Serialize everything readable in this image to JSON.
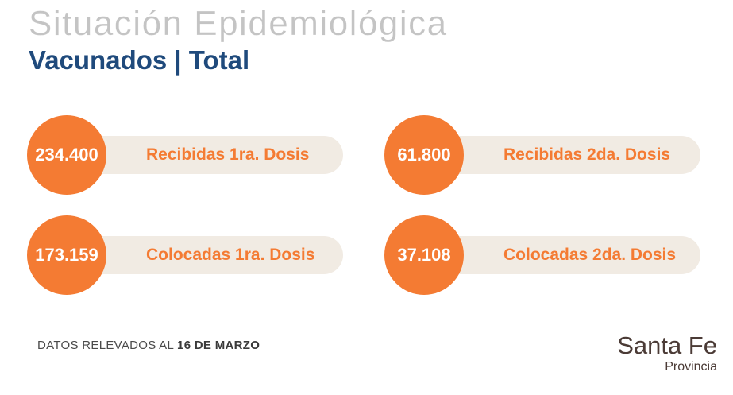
{
  "header": {
    "title": "Situación Epidemiológica",
    "subtitle": "Vacunados | Total"
  },
  "stats": [
    {
      "value": "234.400",
      "label": "Recibidas 1ra. Dosis"
    },
    {
      "value": "61.800",
      "label": "Recibidas 2da. Dosis"
    },
    {
      "value": "173.159",
      "label": "Colocadas 1ra. Dosis"
    },
    {
      "value": "37.108",
      "label": "Colocadas 2da. Dosis"
    }
  ],
  "footer": {
    "note_prefix": "DATOS RELEVADOS AL ",
    "note_date": "16 DE MARZO"
  },
  "logo": {
    "main": "Santa Fe",
    "sub": "Provincia"
  },
  "colors": {
    "accent_orange": "#f47b33",
    "pill_background": "#f1ebe3",
    "title_gray": "#c4c4c4",
    "subtitle_blue": "#1f4a7c",
    "logo_brown": "#4b3b36"
  }
}
